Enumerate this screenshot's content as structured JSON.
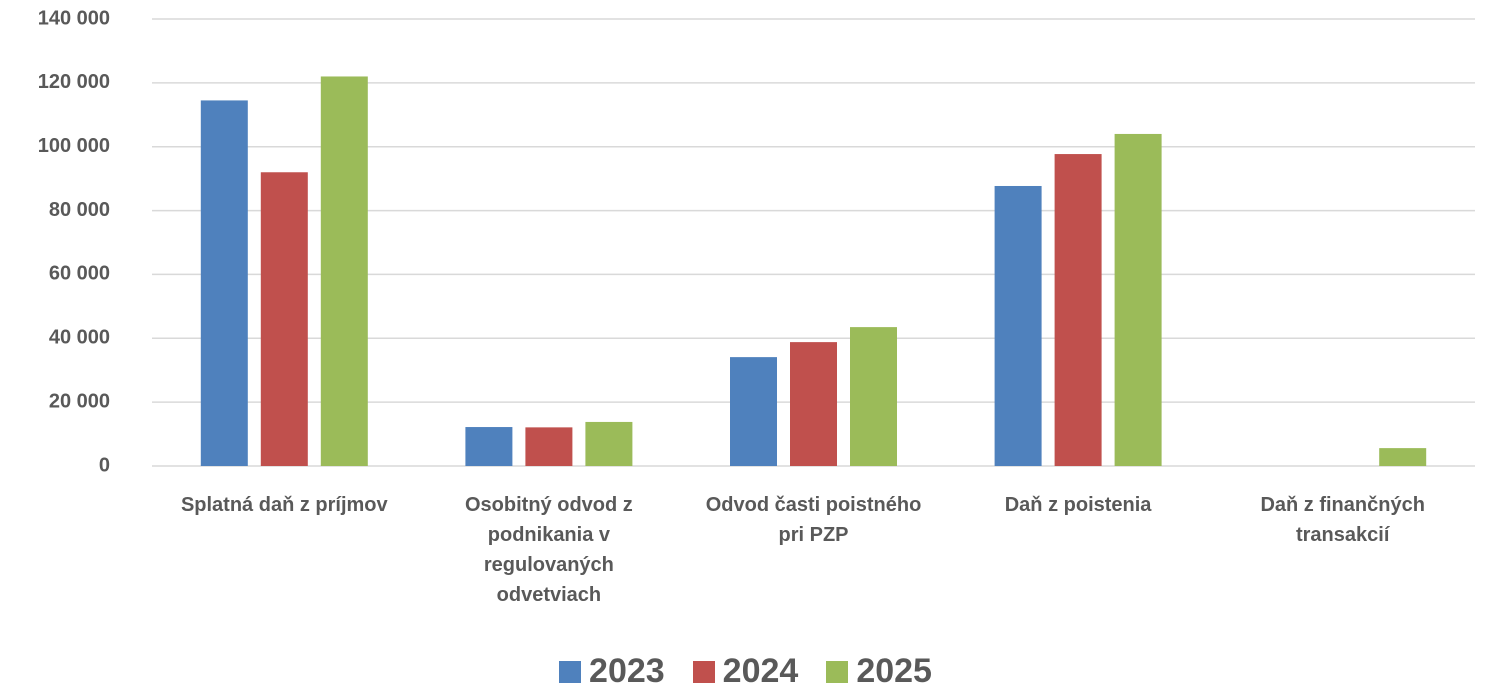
{
  "chart_data": {
    "type": "bar",
    "categories": [
      "Splatná daň z príjmov",
      "Osobitný odvod z podnikania v regulovaných odvetviach",
      "Odvod časti poistného pri PZP",
      "Daň z poistenia",
      "Daň z finančných transakcií"
    ],
    "series": [
      {
        "name": "2023",
        "color": "#4f81bd",
        "values": [
          114500,
          12200,
          34100,
          87700,
          0
        ]
      },
      {
        "name": "2024",
        "color": "#c0504d",
        "values": [
          92000,
          12100,
          38800,
          97700,
          0
        ]
      },
      {
        "name": "2025",
        "color": "#9bbb59",
        "values": [
          122000,
          13800,
          43500,
          104000,
          5600
        ]
      }
    ],
    "ylim": [
      0,
      140000
    ],
    "yticks": [
      0,
      {
        "value": 20000,
        "label": "20 000"
      },
      {
        "value": 40000,
        "label": "40 000"
      },
      {
        "value": 60000,
        "label": "60 000"
      },
      {
        "value": 80000,
        "label": "80 000"
      },
      {
        "value": 100000,
        "label": "100 000"
      },
      {
        "value": 120000,
        "label": "120 000"
      },
      {
        "value": 140000,
        "label": "140 000"
      }
    ],
    "grid": true,
    "legend": "bottom"
  }
}
